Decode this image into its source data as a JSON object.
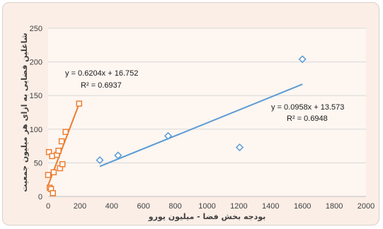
{
  "chart_data": {
    "type": "scatter",
    "xlabel": "بودجه بخش فضا - میلیون یورو",
    "ylabel": "شاغلین فضایی به ازای هر میلیون جمعیت",
    "xlim": [
      0,
      2000
    ],
    "ylim": [
      0,
      250
    ],
    "x_ticks": [
      "0",
      "200",
      "400",
      "600",
      "800",
      "1000",
      "1200",
      "1400",
      "1600",
      "1800",
      "2000"
    ],
    "y_ticks": [
      "0",
      "50",
      "100",
      "150",
      "200",
      "250"
    ],
    "grid": true,
    "series": [
      {
        "marker": "square",
        "color": "#ed7d31",
        "points": [
          {
            "x": 0,
            "y": 32
          },
          {
            "x": 5,
            "y": 66
          },
          {
            "x": 10,
            "y": 13
          },
          {
            "x": 18,
            "y": 11
          },
          {
            "x": 25,
            "y": 60
          },
          {
            "x": 30,
            "y": 5
          },
          {
            "x": 35,
            "y": 36
          },
          {
            "x": 55,
            "y": 62
          },
          {
            "x": 65,
            "y": 68
          },
          {
            "x": 75,
            "y": 42
          },
          {
            "x": 85,
            "y": 82
          },
          {
            "x": 90,
            "y": 48
          },
          {
            "x": 110,
            "y": 96
          },
          {
            "x": 195,
            "y": 138
          }
        ],
        "trendline": {
          "slope": 0.6204,
          "intercept": 16.752,
          "x_range": [
            0,
            195
          ]
        },
        "equation": "y = 0.6204x + 16.752",
        "r_squared": "R² = 0.6937"
      },
      {
        "marker": "diamond",
        "color": "#5b9bd5",
        "points": [
          {
            "x": 325,
            "y": 54
          },
          {
            "x": 440,
            "y": 61
          },
          {
            "x": 755,
            "y": 90
          },
          {
            "x": 1205,
            "y": 73
          },
          {
            "x": 1600,
            "y": 204
          }
        ],
        "trendline": {
          "slope": 0.0958,
          "intercept": 13.573,
          "x_range": [
            325,
            1600
          ]
        },
        "equation": "y = 0.0958x + 13.573",
        "r_squared": "R² = 0.6948"
      }
    ]
  }
}
